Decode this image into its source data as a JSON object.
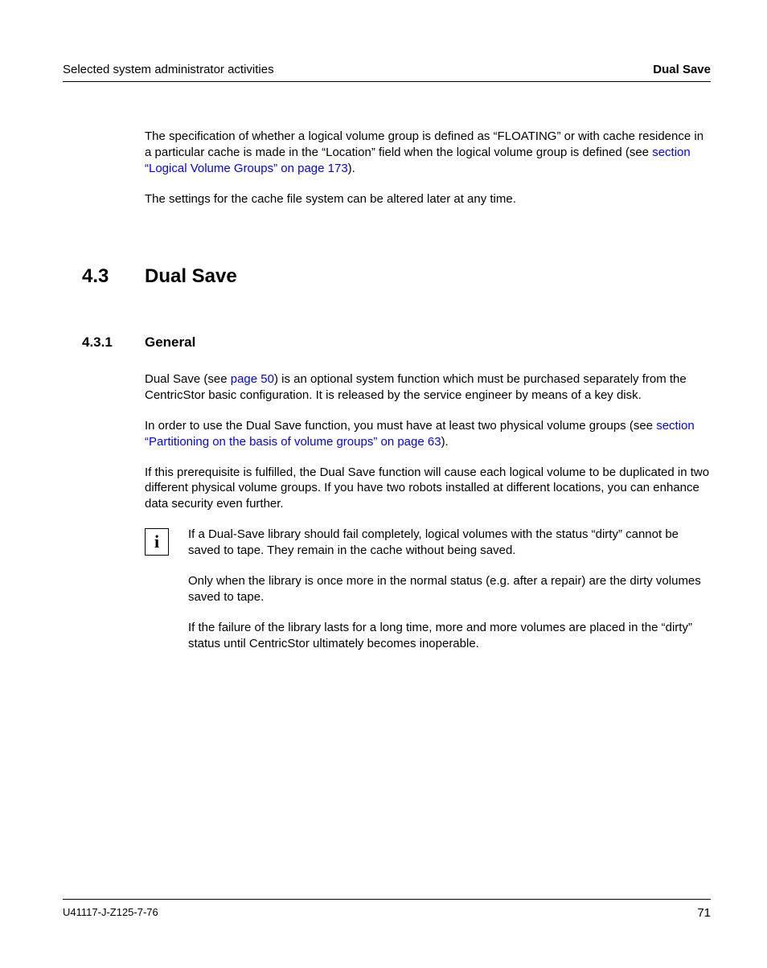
{
  "header": {
    "left": "Selected system administrator activities",
    "right": "Dual Save"
  },
  "intro": {
    "p1_a": "The specification of whether a logical volume group is defined as “FLOATING” or with cache residence in a particular cache is made in the “Location” field when the logical volume group is defined (see ",
    "p1_link": "section “Logical Volume Groups” on page 173",
    "p1_b": ").",
    "p2": "The settings for the cache file system can be altered later at any time."
  },
  "h2": {
    "num": "4.3",
    "title": "Dual Save"
  },
  "h3": {
    "num": "4.3.1",
    "title": "General"
  },
  "general": {
    "p1_a": "Dual Save (see ",
    "p1_link": "page 50",
    "p1_b": ") is an optional system function which must be purchased separately from the CentricStor basic configuration. It is released by the service engineer by means of a key disk.",
    "p2_a": "In order to use the Dual Save function, you must have at least two physical volume groups (see ",
    "p2_link": "section “Partitioning on the basis of volume groups” on page 63",
    "p2_b": ").",
    "p3": "If this prerequisite is fulfilled, the Dual Save function will cause each logical volume to be duplicated in two different physical volume groups. If you have two robots installed at different locations, you can enhance data security even further."
  },
  "note": {
    "icon": "i",
    "p1": "If a Dual-Save library should fail completely, logical volumes with the status “dirty” cannot be saved to tape. They remain in the cache without being saved.",
    "p2": "Only when the library is once more in the normal status (e.g. after a repair) are the dirty volumes saved to tape.",
    "p3": "If the failure of the library lasts for a long time, more and more volumes are placed in the “dirty” status until CentricStor ultimately becomes inoperable."
  },
  "footer": {
    "docid": "U41117-J-Z125-7-76",
    "pageno": "71"
  },
  "colors": {
    "link": "#0000ff",
    "text": "#000000",
    "background": "#ffffff",
    "rule": "#000000"
  },
  "fonts": {
    "body_family": "Arial, Helvetica, sans-serif",
    "body_size_pt": 11,
    "h2_size_pt": 18,
    "h3_size_pt": 13,
    "footer_size_pt": 10
  }
}
